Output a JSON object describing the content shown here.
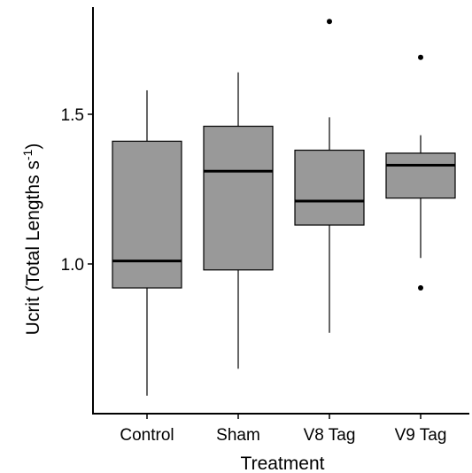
{
  "chart_data": {
    "type": "box",
    "title": "",
    "xlabel": "Treatment",
    "ylabel": {
      "main": "Ucrit (Total Lengths s",
      "superscript": "-1",
      "close": ")"
    },
    "ylim": [
      0.5,
      1.85
    ],
    "yticks": [
      1.0,
      1.5
    ],
    "ytick_labels": [
      "1.0",
      "1.5"
    ],
    "grid": false,
    "legend": "none",
    "colors": {
      "box_fill": "#999999",
      "stroke": "#000000"
    },
    "categories": [
      "Control",
      "Sham",
      "V8 Tag",
      "V9 Tag"
    ],
    "boxes": [
      {
        "category": "Control",
        "whisker_low": 0.56,
        "q1": 0.92,
        "median": 1.01,
        "q3": 1.41,
        "whisker_high": 1.58,
        "outliers": []
      },
      {
        "category": "Sham",
        "whisker_low": 0.65,
        "q1": 0.98,
        "median": 1.31,
        "q3": 1.46,
        "whisker_high": 1.64,
        "outliers": []
      },
      {
        "category": "V8 Tag",
        "whisker_low": 0.77,
        "q1": 1.13,
        "median": 1.21,
        "q3": 1.38,
        "whisker_high": 1.49,
        "outliers": [
          1.81
        ]
      },
      {
        "category": "V9 Tag",
        "whisker_low": 1.02,
        "q1": 1.22,
        "median": 1.33,
        "q3": 1.37,
        "whisker_high": 1.43,
        "outliers": [
          1.69,
          0.92
        ]
      }
    ]
  }
}
